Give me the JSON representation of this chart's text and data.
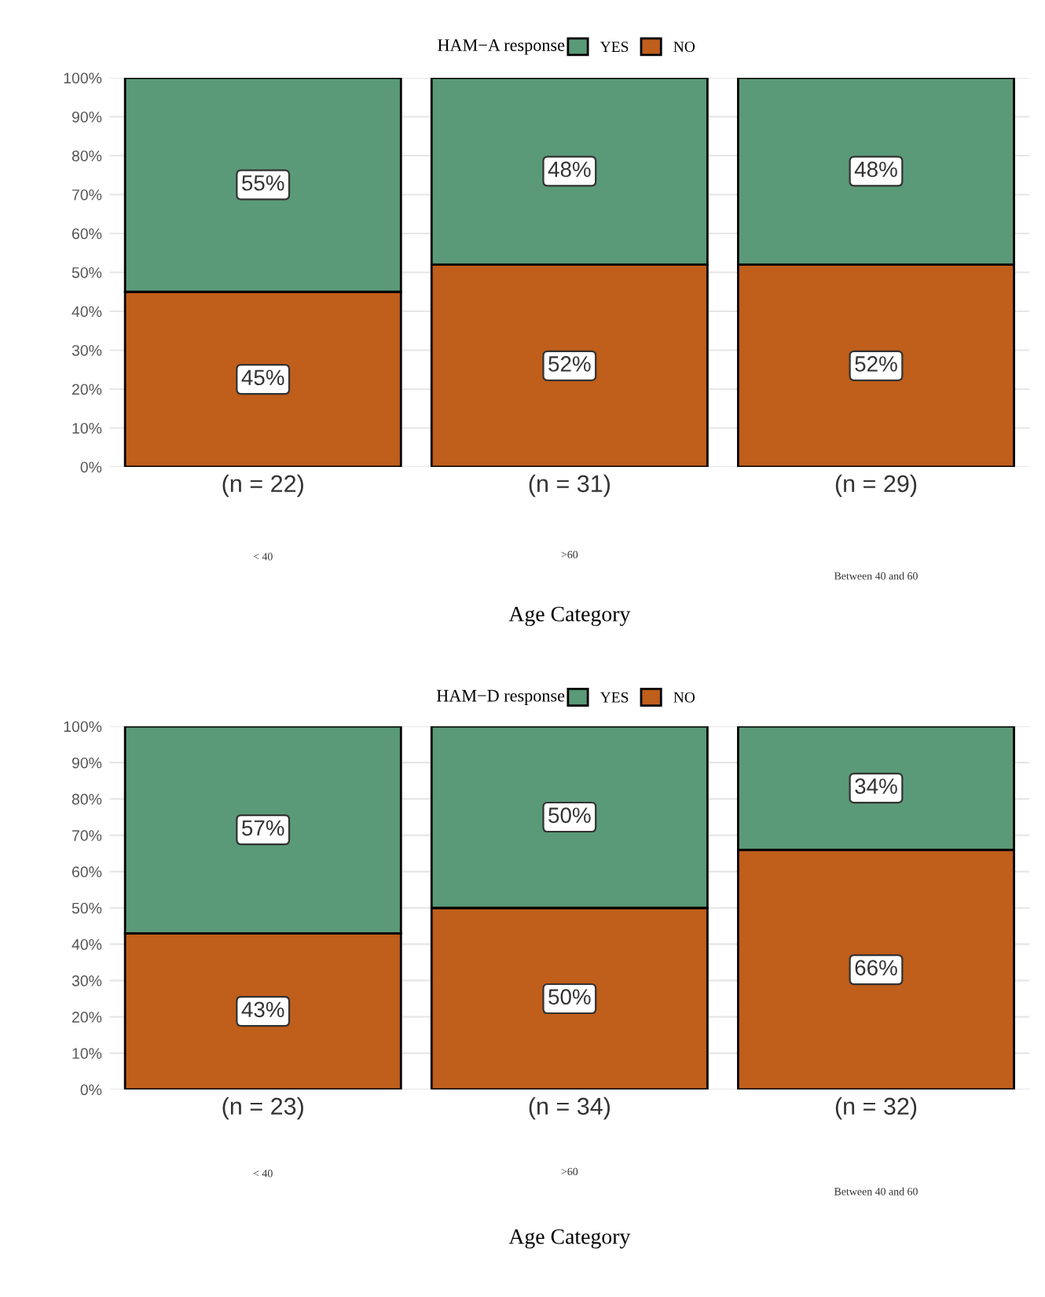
{
  "chart_data": [
    {
      "type": "bar",
      "stacked": true,
      "legend_title": "HAM−A response",
      "legend": "top",
      "xlabel": "Age Category",
      "categories": [
        "(n = 22)",
        "(n = 31)",
        "(n = 29)"
      ],
      "series": [
        {
          "name": "NO",
          "color": "#c05e1b",
          "values": [
            45,
            52,
            52
          ],
          "value_labels": [
            "45%",
            "52%",
            "52%"
          ]
        },
        {
          "name": "YES",
          "color": "#5a9a78",
          "values": [
            55,
            48,
            48
          ],
          "value_labels": [
            "55%",
            "48%",
            "48%"
          ]
        }
      ],
      "ylim": [
        0,
        100
      ],
      "yticks": [
        {
          "value": 0,
          "label": "0%"
        },
        {
          "value": 10,
          "label": "10%"
        },
        {
          "value": 20,
          "label": "20%"
        },
        {
          "value": 30,
          "label": "30%"
        },
        {
          "value": 40,
          "label": "40%"
        },
        {
          "value": 50,
          "label": "50%"
        },
        {
          "value": 60,
          "label": "60%"
        },
        {
          "value": 70,
          "label": "70%"
        },
        {
          "value": 80,
          "label": "80%"
        },
        {
          "value": 90,
          "label": "90%"
        },
        {
          "value": 100,
          "label": "100%"
        }
      ],
      "grid": "y",
      "annotations": [
        "< 40",
        ">60",
        "Between 40 and 60"
      ]
    },
    {
      "type": "bar",
      "stacked": true,
      "legend_title": "HAM−D response",
      "legend": "top",
      "xlabel": "Age Category",
      "categories": [
        "(n = 23)",
        "(n = 34)",
        "(n = 32)"
      ],
      "series": [
        {
          "name": "NO",
          "color": "#c05e1b",
          "values": [
            43,
            50,
            66
          ],
          "value_labels": [
            "43%",
            "50%",
            "66%"
          ]
        },
        {
          "name": "YES",
          "color": "#5a9a78",
          "values": [
            57,
            50,
            34
          ],
          "value_labels": [
            "57%",
            "50%",
            "34%"
          ]
        }
      ],
      "ylim": [
        0,
        100
      ],
      "yticks": [
        {
          "value": 0,
          "label": "0%"
        },
        {
          "value": 10,
          "label": "10%"
        },
        {
          "value": 20,
          "label": "20%"
        },
        {
          "value": 30,
          "label": "30%"
        },
        {
          "value": 40,
          "label": "40%"
        },
        {
          "value": 50,
          "label": "50%"
        },
        {
          "value": 60,
          "label": "60%"
        },
        {
          "value": 70,
          "label": "70%"
        },
        {
          "value": 80,
          "label": "80%"
        },
        {
          "value": 90,
          "label": "90%"
        },
        {
          "value": 100,
          "label": "100%"
        }
      ],
      "grid": "y",
      "annotations": [
        "< 40",
        ">60",
        "Between 40 and 60"
      ]
    }
  ]
}
